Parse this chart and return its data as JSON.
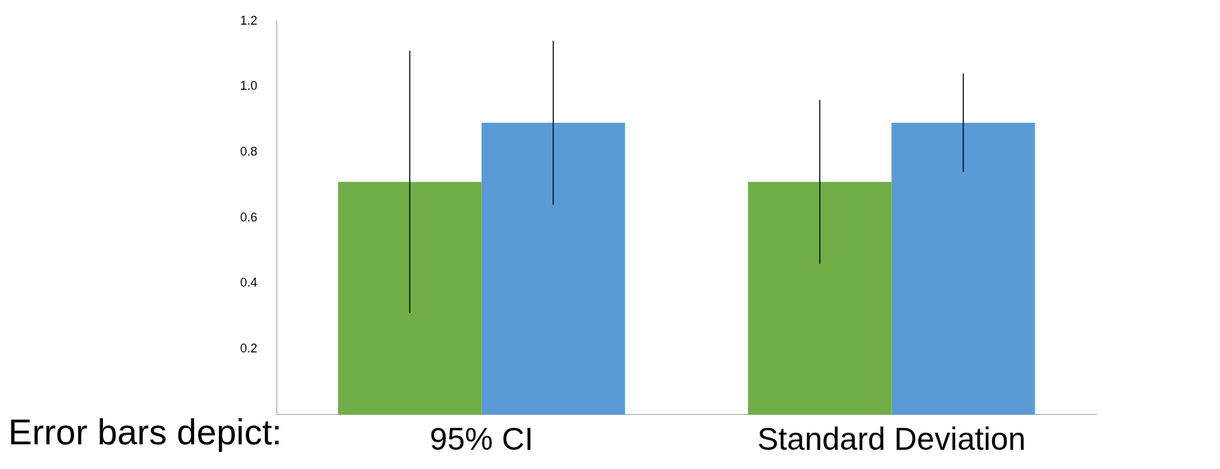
{
  "chart_data": {
    "type": "bar",
    "categories": [
      "95% CI",
      "Standard Deviation"
    ],
    "series": [
      {
        "color": "#70ad47",
        "values": [
          0.71,
          0.71
        ],
        "errors": [
          0.4,
          0.25
        ]
      },
      {
        "color": "#5b9bd5",
        "values": [
          0.89,
          0.89
        ],
        "errors": [
          0.25,
          0.15
        ]
      }
    ],
    "ylim": [
      0,
      1.2
    ],
    "yticks": [
      {
        "value": 0.2,
        "label": "0.2"
      },
      {
        "value": 0.4,
        "label": "0.4"
      },
      {
        "value": 0.6,
        "label": "0.6"
      },
      {
        "value": 0.8,
        "label": "0.8"
      },
      {
        "value": 1,
        "label": "1.0"
      },
      {
        "value": 1.2,
        "label": "1.2"
      }
    ],
    "grid": false,
    "legend": false,
    "annotations": [
      "Error bars depict:"
    ]
  }
}
